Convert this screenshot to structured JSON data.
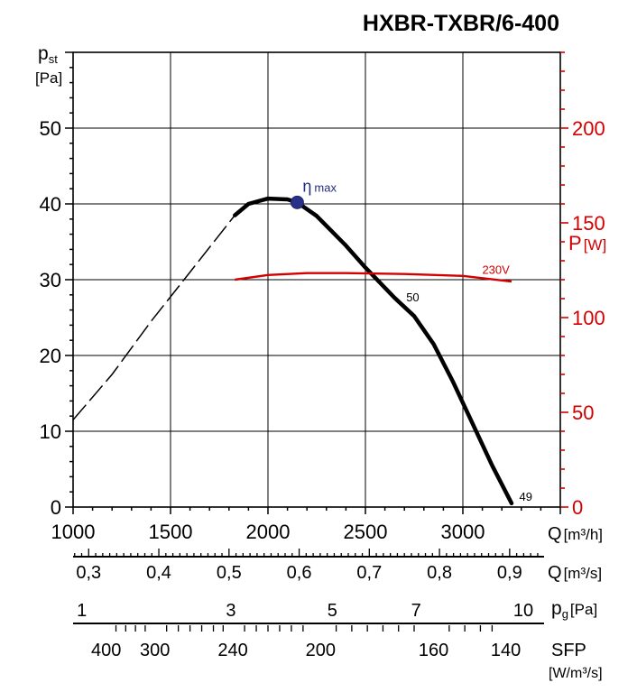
{
  "chart_data": {
    "type": "line",
    "title": "HXBR-TXBR/6-400",
    "y_left": {
      "label_main": "p",
      "label_sub": "st",
      "unit": "[Pa]",
      "range": [
        0,
        60
      ],
      "ticks": [
        0,
        10,
        20,
        30,
        40,
        50
      ]
    },
    "y_right": {
      "label_main": "P",
      "unit": "[W]",
      "range": [
        0,
        240
      ],
      "ticks": [
        0,
        50,
        100,
        150,
        200
      ],
      "color": "#d40000"
    },
    "x_axes": [
      {
        "label_main": "Q",
        "unit": "[m³/h]",
        "range": [
          1000,
          3500
        ],
        "ticks": [
          1000,
          1500,
          2000,
          2500,
          3000
        ]
      },
      {
        "label_main": "Q",
        "unit": "[m³/s]",
        "ticks": [
          "0,3",
          "0,4",
          "0,5",
          "0,6",
          "0,7",
          "0,8",
          "0,9"
        ]
      },
      {
        "label_main": "p",
        "label_sub": "g",
        "unit": "[Pa]",
        "ticks": [
          "1",
          "3",
          "5",
          "7",
          "10"
        ]
      },
      {
        "label_main": "SFP",
        "unit": "[W/m³/s]",
        "ticks": [
          "400",
          "300",
          "240",
          "200",
          "160",
          "140"
        ]
      }
    ],
    "grid": true,
    "series": [
      {
        "axis": "left",
        "color": "#000000",
        "points": [
          [
            1830,
            38.5
          ],
          [
            1900,
            40.0
          ],
          [
            2000,
            40.7
          ],
          [
            2100,
            40.6
          ],
          [
            2150,
            40.2
          ],
          [
            2250,
            38.4
          ],
          [
            2400,
            34.5
          ],
          [
            2500,
            31.6
          ],
          [
            2650,
            27.6
          ],
          [
            2750,
            25.2
          ],
          [
            2850,
            21.5
          ],
          [
            2950,
            16.5
          ],
          [
            3050,
            11.0
          ],
          [
            3150,
            5.5
          ],
          [
            3250,
            0.5
          ]
        ],
        "dashed_lead_in": [
          [
            1000,
            11.5
          ],
          [
            1200,
            17.5
          ],
          [
            1400,
            24.5
          ],
          [
            1600,
            31.0
          ],
          [
            1830,
            38.5
          ]
        ]
      },
      {
        "axis": "right",
        "name": "230V",
        "color": "#d40000",
        "points": [
          [
            1830,
            120
          ],
          [
            2000,
            122.5
          ],
          [
            2200,
            123.5
          ],
          [
            2400,
            123.5
          ],
          [
            2700,
            123
          ],
          [
            3000,
            122
          ],
          [
            3250,
            119
          ]
        ]
      }
    ],
    "annotations": [
      {
        "text": "η",
        "sub": "max",
        "x": 2150,
        "y": 40.2,
        "color": "#232b7c"
      },
      {
        "text": "50",
        "x": 2700,
        "y": 27.6
      },
      {
        "text": "49",
        "x": 3280,
        "y": 1.3
      },
      {
        "text": "230V",
        "x": 3090,
        "y": 125,
        "axis": "right",
        "color": "#d40000"
      }
    ]
  }
}
